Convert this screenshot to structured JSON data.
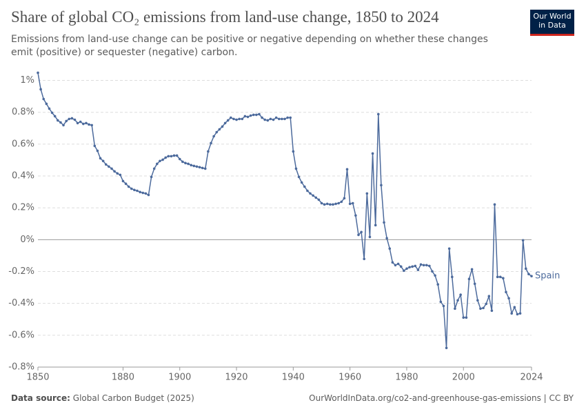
{
  "header": {
    "title": "Share of global CO₂ emissions from land-use change, 1850 to 2024",
    "subtitle": "Emissions from land-use change can be positive or negative depending on whether these changes emit (positive) or sequester (negative) carbon.",
    "logo": [
      "Our World",
      "in Data"
    ]
  },
  "chart_data": {
    "type": "line",
    "x": [
      1850,
      1851,
      1852,
      1853,
      1854,
      1855,
      1856,
      1857,
      1858,
      1859,
      1860,
      1861,
      1862,
      1863,
      1864,
      1865,
      1866,
      1867,
      1868,
      1869,
      1870,
      1871,
      1872,
      1873,
      1874,
      1875,
      1876,
      1877,
      1878,
      1879,
      1880,
      1881,
      1882,
      1883,
      1884,
      1885,
      1886,
      1887,
      1888,
      1889,
      1890,
      1891,
      1892,
      1893,
      1894,
      1895,
      1896,
      1897,
      1898,
      1899,
      1900,
      1901,
      1902,
      1903,
      1904,
      1905,
      1906,
      1907,
      1908,
      1909,
      1910,
      1911,
      1912,
      1913,
      1914,
      1915,
      1916,
      1917,
      1918,
      1919,
      1920,
      1921,
      1922,
      1923,
      1924,
      1925,
      1926,
      1927,
      1928,
      1929,
      1930,
      1931,
      1932,
      1933,
      1934,
      1935,
      1936,
      1937,
      1938,
      1939,
      1940,
      1941,
      1942,
      1943,
      1944,
      1945,
      1946,
      1947,
      1948,
      1949,
      1950,
      1951,
      1952,
      1953,
      1954,
      1955,
      1956,
      1957,
      1958,
      1959,
      1960,
      1961,
      1962,
      1963,
      1964,
      1965,
      1966,
      1967,
      1968,
      1969,
      1970,
      1971,
      1972,
      1973,
      1974,
      1975,
      1976,
      1977,
      1978,
      1979,
      1980,
      1981,
      1982,
      1983,
      1984,
      1985,
      1986,
      1987,
      1988,
      1989,
      1990,
      1991,
      1992,
      1993,
      1994,
      1995,
      1996,
      1997,
      1998,
      1999,
      2000,
      2001,
      2002,
      2003,
      2004,
      2005,
      2006,
      2007,
      2008,
      2009,
      2010,
      2011,
      2012,
      2013,
      2014,
      2015,
      2016,
      2017,
      2018,
      2019,
      2020,
      2021,
      2022,
      2023,
      2024
    ],
    "series": [
      {
        "name": "Spain",
        "color": "#4c6a9c",
        "values": [
          1.048,
          0.944,
          0.883,
          0.853,
          0.823,
          0.797,
          0.775,
          0.749,
          0.736,
          0.719,
          0.745,
          0.758,
          0.762,
          0.753,
          0.732,
          0.74,
          0.727,
          0.732,
          0.723,
          0.719,
          0.589,
          0.558,
          0.511,
          0.494,
          0.472,
          0.459,
          0.446,
          0.429,
          0.416,
          0.407,
          0.368,
          0.351,
          0.333,
          0.32,
          0.312,
          0.307,
          0.299,
          0.294,
          0.29,
          0.281,
          0.394,
          0.446,
          0.476,
          0.494,
          0.502,
          0.515,
          0.524,
          0.524,
          0.528,
          0.528,
          0.506,
          0.489,
          0.481,
          0.476,
          0.468,
          0.463,
          0.459,
          0.455,
          0.45,
          0.446,
          0.554,
          0.606,
          0.649,
          0.675,
          0.693,
          0.71,
          0.732,
          0.749,
          0.766,
          0.758,
          0.753,
          0.758,
          0.758,
          0.775,
          0.771,
          0.779,
          0.784,
          0.784,
          0.788,
          0.766,
          0.753,
          0.749,
          0.758,
          0.753,
          0.766,
          0.758,
          0.758,
          0.758,
          0.766,
          0.766,
          0.554,
          0.446,
          0.394,
          0.359,
          0.333,
          0.307,
          0.29,
          0.277,
          0.264,
          0.251,
          0.229,
          0.221,
          0.225,
          0.221,
          0.221,
          0.225,
          0.229,
          0.238,
          0.26,
          0.442,
          0.225,
          0.229,
          0.152,
          0.03,
          0.048,
          -0.121,
          0.29,
          0.017,
          0.541,
          0.091,
          0.788,
          0.342,
          0.108,
          0.009,
          -0.056,
          -0.143,
          -0.16,
          -0.152,
          -0.169,
          -0.195,
          -0.182,
          -0.173,
          -0.169,
          -0.165,
          -0.19,
          -0.156,
          -0.16,
          -0.16,
          -0.165,
          -0.199,
          -0.225,
          -0.281,
          -0.39,
          -0.416,
          -0.68,
          -0.056,
          -0.234,
          -0.433,
          -0.381,
          -0.346,
          -0.489,
          -0.489,
          -0.247,
          -0.186,
          -0.277,
          -0.381,
          -0.433,
          -0.429,
          -0.403,
          -0.355,
          -0.446,
          0.221,
          -0.234,
          -0.234,
          -0.242,
          -0.329,
          -0.368,
          -0.463,
          -0.424,
          -0.468,
          -0.463,
          -0.004,
          -0.182,
          -0.216,
          -0.229
        ]
      }
    ],
    "xlim": [
      1850,
      2024
    ],
    "xticks": [
      1850,
      1880,
      1900,
      1920,
      1940,
      1960,
      1980,
      2000,
      2024
    ],
    "ylim": [
      -0.8,
      1.05
    ],
    "yticks": [
      {
        "value": -0.8,
        "label": "-0.8%"
      },
      {
        "value": -0.6,
        "label": "-0.6%"
      },
      {
        "value": -0.4,
        "label": "-0.4%"
      },
      {
        "value": -0.2,
        "label": "-0.2%"
      },
      {
        "value": 0,
        "label": "0%"
      },
      {
        "value": 0.2,
        "label": "0.2%"
      },
      {
        "value": 0.4,
        "label": "0.4%"
      },
      {
        "value": 0.6,
        "label": "0.6%"
      },
      {
        "value": 0.8,
        "label": "0.8%"
      },
      {
        "value": 1,
        "label": "1%"
      }
    ],
    "grid": true
  },
  "footer": {
    "source_label": "Data source:",
    "source": "Global Carbon Budget (2025)",
    "url": "OurWorldInData.org/co2-and-greenhouse-gas-emissions | CC BY"
  }
}
